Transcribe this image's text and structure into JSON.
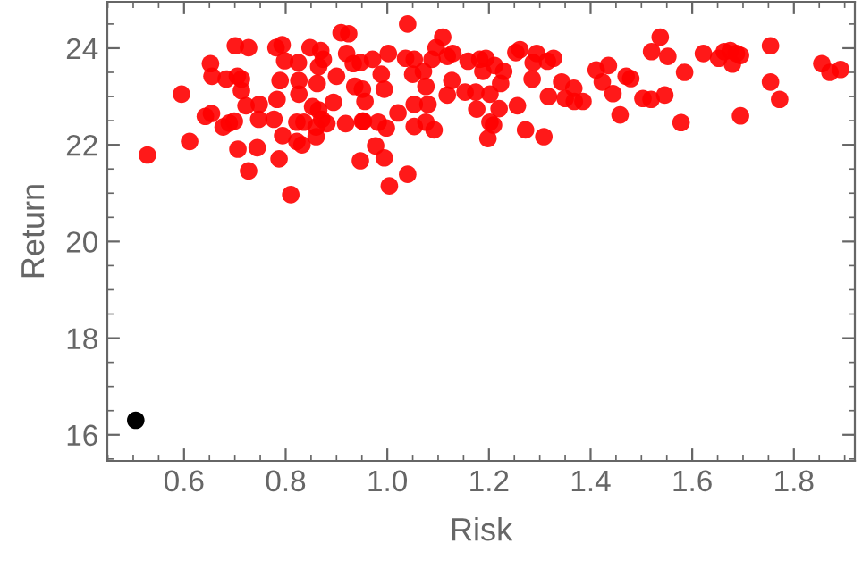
{
  "chart_data": {
    "type": "scatter",
    "xlabel": "Risk",
    "ylabel": "Return",
    "xlim": [
      0.449,
      1.92
    ],
    "ylim": [
      15.46,
      24.96
    ],
    "xticks": [
      0.6,
      0.8,
      {
        "value": 1,
        "label": "1.0"
      },
      1.2,
      1.4,
      1.6,
      1.8
    ],
    "yticks": [
      16,
      18,
      20,
      22,
      24
    ],
    "grid": false,
    "legend": false,
    "marker": "circle",
    "series": [
      {
        "color": "#ff0000",
        "x": [
          0.528,
          0.595,
          0.611,
          0.642,
          0.654,
          0.652,
          0.655,
          0.677,
          0.689,
          0.699,
          0.683,
          0.701,
          0.727,
          0.705,
          0.713,
          0.713,
          0.706,
          0.727,
          0.744,
          0.722,
          0.748,
          0.747,
          0.777,
          0.783,
          0.789,
          0.781,
          0.793,
          0.798,
          0.787,
          0.794,
          0.81,
          0.822,
          0.832,
          0.822,
          0.836,
          0.825,
          0.826,
          0.826,
          0.848,
          0.862,
          0.86,
          0.865,
          0.874,
          0.869,
          0.853,
          0.865,
          0.871,
          0.881,
          0.86,
          0.894,
          0.9,
          0.909,
          0.924,
          0.92,
          0.918,
          0.933,
          0.947,
          0.951,
          0.936,
          0.956,
          0.971,
          0.977,
          0.994,
          1.004,
          0.982,
          0.994,
          0.988,
          0.947,
          0.951,
          0.953,
          1.04,
          1.04,
          1.002,
          0.998,
          1.021,
          1.036,
          1.053,
          1.05,
          1.053,
          1.053,
          1.076,
          1.092,
          1.08,
          1.076,
          1.071,
          1.088,
          1.096,
          1.109,
          1.118,
          1.129,
          1.127,
          1.118,
          1.153,
          1.176,
          1.174,
          1.159,
          1.182,
          1.194,
          1.188,
          1.202,
          1.202,
          1.198,
          1.209,
          1.22,
          1.223,
          1.229,
          1.211,
          1.253,
          1.261,
          1.256,
          1.272,
          1.287,
          1.294,
          1.285,
          1.308,
          1.315,
          1.327,
          1.317,
          1.343,
          1.35,
          1.367,
          1.368,
          1.385,
          1.411,
          1.435,
          1.423,
          1.444,
          1.458,
          1.47,
          1.479,
          1.503,
          1.519,
          1.546,
          1.52,
          1.537,
          1.552,
          1.585,
          1.578,
          1.622,
          1.652,
          1.663,
          1.675,
          1.687,
          1.679,
          1.695,
          1.695,
          1.754,
          1.754,
          1.772,
          1.855,
          1.871,
          1.892
        ],
        "values": [
          21.79,
          23.05,
          22.07,
          22.59,
          22.65,
          23.68,
          23.42,
          22.37,
          22.45,
          22.49,
          23.36,
          24.05,
          24.01,
          23.42,
          23.36,
          23.12,
          21.91,
          21.46,
          21.94,
          22.81,
          22.84,
          22.53,
          22.53,
          22.94,
          23.33,
          24.01,
          24.07,
          23.74,
          21.71,
          22.19,
          20.97,
          22.07,
          22.0,
          22.47,
          22.47,
          23.7,
          23.33,
          23.05,
          24.01,
          23.27,
          22.17,
          23.62,
          23.77,
          23.95,
          22.79,
          22.72,
          22.53,
          22.44,
          22.37,
          22.88,
          23.42,
          24.32,
          24.3,
          23.89,
          22.44,
          23.68,
          21.67,
          22.49,
          23.21,
          22.9,
          23.77,
          21.98,
          21.73,
          21.15,
          22.47,
          23.15,
          23.46,
          23.7,
          23.15,
          22.49,
          21.39,
          24.5,
          23.89,
          22.35,
          22.66,
          23.79,
          23.77,
          23.46,
          22.84,
          22.38,
          22.47,
          22.31,
          22.84,
          23.21,
          23.52,
          23.77,
          24.01,
          24.23,
          23.83,
          23.89,
          23.33,
          23.03,
          23.09,
          22.74,
          23.09,
          23.73,
          23.77,
          23.79,
          23.52,
          23.05,
          22.47,
          22.13,
          22.41,
          22.75,
          23.27,
          23.52,
          23.64,
          23.91,
          23.97,
          22.81,
          22.31,
          23.7,
          23.89,
          23.36,
          22.17,
          23.73,
          23.79,
          23.0,
          23.3,
          22.96,
          23.17,
          22.9,
          22.9,
          23.55,
          23.64,
          23.3,
          23.06,
          22.62,
          23.42,
          23.37,
          22.96,
          22.94,
          23.03,
          23.93,
          24.23,
          23.83,
          23.5,
          22.46,
          23.89,
          23.79,
          23.93,
          23.95,
          23.89,
          23.67,
          23.85,
          22.6,
          24.05,
          23.3,
          22.94,
          23.68,
          23.5,
          23.56
        ]
      },
      {
        "color": "#000000",
        "x": [
          0.505
        ],
        "values": [
          16.3
        ]
      }
    ]
  }
}
